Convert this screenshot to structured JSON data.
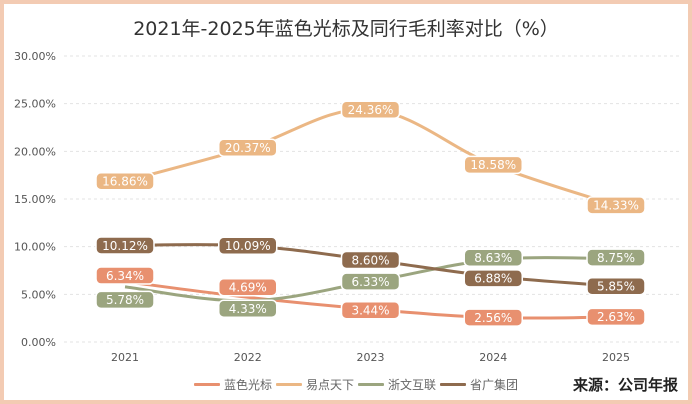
{
  "chart_data": {
    "type": "line",
    "title": "2021年-2025年蓝色光标及同行毛利率对比（%）",
    "categories": [
      "2021",
      "2022",
      "2023",
      "2024",
      "2025"
    ],
    "ylim": [
      0,
      30
    ],
    "yticks": [
      "0.00%",
      "5.00%",
      "10.00%",
      "15.00%",
      "20.00%",
      "25.00%",
      "30.00%"
    ],
    "grid": true,
    "legend_position": "bottom",
    "series": [
      {
        "name": "蓝色光标",
        "color": "#e8906f",
        "values": [
          6.34,
          4.69,
          3.44,
          2.56,
          2.63
        ],
        "labels": [
          "6.34%",
          "4.69%",
          "3.44%",
          "2.56%",
          "2.63%"
        ]
      },
      {
        "name": "易点天下",
        "color": "#ebb784",
        "values": [
          16.86,
          20.37,
          24.36,
          18.58,
          14.33
        ],
        "labels": [
          "16.86%",
          "20.37%",
          "24.36%",
          "18.58%",
          "14.33%"
        ]
      },
      {
        "name": "浙文互联",
        "color": "#9ba57f",
        "values": [
          5.78,
          4.33,
          6.33,
          8.63,
          8.75
        ],
        "labels": [
          "5.78%",
          "4.33%",
          "6.33%",
          "8.63%",
          "8.75%"
        ]
      },
      {
        "name": "省广集团",
        "color": "#8e6b4e",
        "values": [
          10.12,
          10.09,
          8.6,
          6.88,
          5.85
        ],
        "labels": [
          "10.12%",
          "10.09%",
          "8.60%",
          "6.88%",
          "5.85%"
        ]
      }
    ]
  },
  "source": "来源：公司年报"
}
